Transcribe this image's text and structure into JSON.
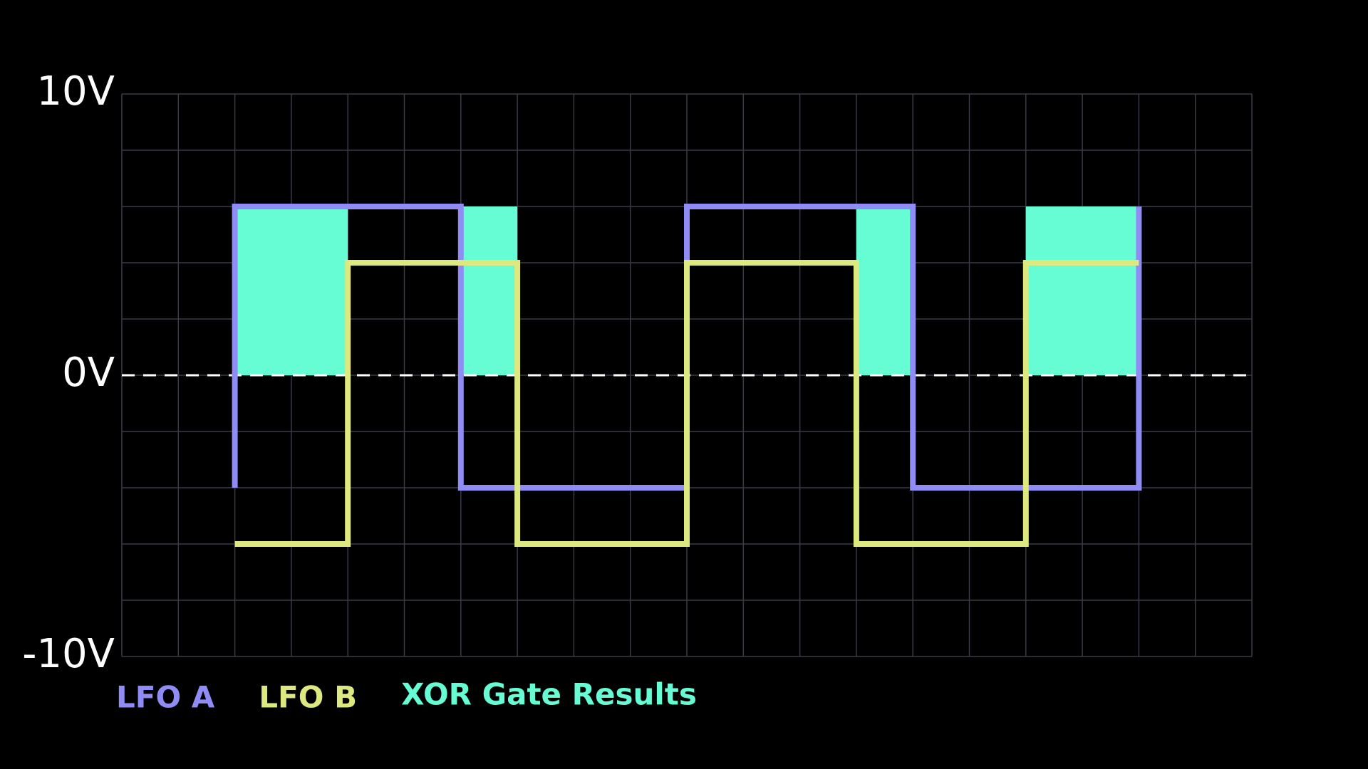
{
  "chart_data": {
    "type": "line",
    "xlim": [
      0,
      20
    ],
    "xgrid": [
      0,
      1,
      2,
      3,
      4,
      5,
      6,
      7,
      8,
      9,
      10,
      11,
      12,
      13,
      14,
      15,
      16,
      17,
      18,
      19,
      20
    ],
    "ylim": [
      -10,
      10
    ],
    "ygrid": [
      -10,
      -8,
      -6,
      -4,
      -2,
      0,
      2,
      4,
      6,
      8,
      10
    ],
    "yticks": [
      {
        "value": 10,
        "label": "10V"
      },
      {
        "value": 0,
        "label": "0V"
      },
      {
        "value": -10,
        "label": "-10V"
      }
    ],
    "zero_line": true,
    "series": [
      {
        "name": "LFO A",
        "color": "#8f8cf5",
        "x": [
          2,
          2,
          6,
          6,
          10,
          10,
          14,
          14,
          18,
          18
        ],
        "values": [
          -4,
          6,
          6,
          -4,
          -4,
          6,
          6,
          -4,
          -4,
          6
        ]
      },
      {
        "name": "LFO B",
        "color": "#dde87e",
        "x": [
          2,
          4,
          4,
          7,
          7,
          10,
          10,
          13,
          13,
          16,
          16,
          18
        ],
        "values": [
          -6,
          -6,
          4,
          4,
          -6,
          -6,
          4,
          4,
          -6,
          -6,
          4,
          4
        ]
      }
    ],
    "gate": {
      "name": "XOR Gate Results",
      "color": "#66fcd4",
      "low": 0,
      "high": 6,
      "spans": [
        [
          2,
          4
        ],
        [
          6,
          7
        ],
        [
          13,
          14
        ],
        [
          16,
          18
        ]
      ]
    }
  }
}
